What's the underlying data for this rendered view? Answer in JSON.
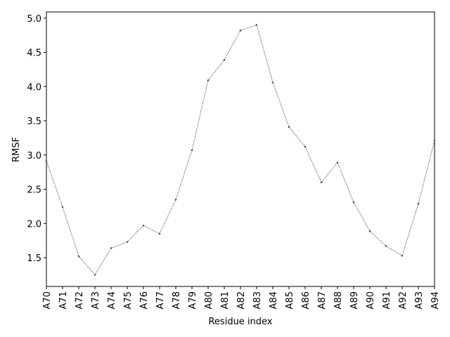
{
  "chart_data": {
    "type": "line",
    "xlabel": "Residue index",
    "ylabel": "RMSF",
    "categories": [
      "A70",
      "A71",
      "A72",
      "A73",
      "A74",
      "A75",
      "A76",
      "A77",
      "A78",
      "A79",
      "A80",
      "A81",
      "A82",
      "A83",
      "A84",
      "A85",
      "A86",
      "A87",
      "A88",
      "A89",
      "A90",
      "A91",
      "A92",
      "A93",
      "A94"
    ],
    "values": [
      2.91,
      2.24,
      1.52,
      1.25,
      1.64,
      1.73,
      1.97,
      1.85,
      2.35,
      3.07,
      4.09,
      4.39,
      4.82,
      4.9,
      4.06,
      3.41,
      3.12,
      2.6,
      2.89,
      2.31,
      1.89,
      1.67,
      1.53,
      2.29,
      3.21
    ],
    "color": "#555555",
    "ylim": [
      1.08,
      5.09
    ],
    "yticks": [
      {
        "value": 1.5,
        "label": "1.5"
      },
      {
        "value": 2.0,
        "label": "2.0"
      },
      {
        "value": 2.5,
        "label": "2.5"
      },
      {
        "value": 3.0,
        "label": "3.0"
      },
      {
        "value": 3.5,
        "label": "3.5"
      },
      {
        "value": 4.0,
        "label": "4.0"
      },
      {
        "value": 4.5,
        "label": "4.5"
      },
      {
        "value": 5.0,
        "label": "5.0"
      }
    ],
    "grid": false
  }
}
